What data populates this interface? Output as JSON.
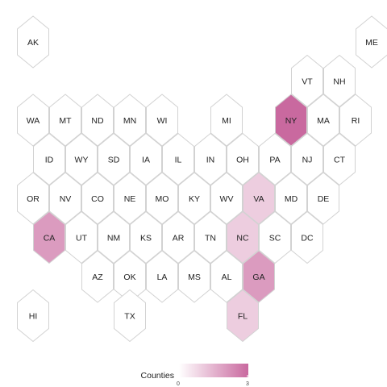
{
  "colors": {
    "low": "#ffffff",
    "high": "#c9699f",
    "hex_stroke": "#d2d2d2"
  },
  "legend": {
    "title": "Counties",
    "min_label": "0",
    "max_label": "3",
    "min": 0,
    "max": 3
  },
  "states": [
    {
      "abbr": "AK",
      "row": 0,
      "col": 0,
      "value": 0
    },
    {
      "abbr": "ME",
      "row": 0,
      "col": 10.5,
      "value": 0
    },
    {
      "abbr": "VT",
      "row": 1,
      "col": 8.5,
      "value": 0
    },
    {
      "abbr": "NH",
      "row": 1,
      "col": 9.5,
      "value": 0
    },
    {
      "abbr": "WA",
      "row": 2,
      "col": 0,
      "value": 0
    },
    {
      "abbr": "MT",
      "row": 2,
      "col": 1,
      "value": 0
    },
    {
      "abbr": "ND",
      "row": 2,
      "col": 2,
      "value": 0
    },
    {
      "abbr": "MN",
      "row": 2,
      "col": 3,
      "value": 0
    },
    {
      "abbr": "WI",
      "row": 2,
      "col": 4,
      "value": 0
    },
    {
      "abbr": "MI",
      "row": 2,
      "col": 6,
      "value": 0
    },
    {
      "abbr": "NY",
      "row": 2,
      "col": 8,
      "value": 3
    },
    {
      "abbr": "MA",
      "row": 2,
      "col": 9,
      "value": 0
    },
    {
      "abbr": "RI",
      "row": 2,
      "col": 10,
      "value": 0
    },
    {
      "abbr": "ID",
      "row": 3,
      "col": 0.5,
      "value": 0
    },
    {
      "abbr": "WY",
      "row": 3,
      "col": 1.5,
      "value": 0
    },
    {
      "abbr": "SD",
      "row": 3,
      "col": 2.5,
      "value": 0
    },
    {
      "abbr": "IA",
      "row": 3,
      "col": 3.5,
      "value": 0
    },
    {
      "abbr": "IL",
      "row": 3,
      "col": 4.5,
      "value": 0
    },
    {
      "abbr": "IN",
      "row": 3,
      "col": 5.5,
      "value": 0
    },
    {
      "abbr": "OH",
      "row": 3,
      "col": 6.5,
      "value": 0
    },
    {
      "abbr": "PA",
      "row": 3,
      "col": 7.5,
      "value": 0
    },
    {
      "abbr": "NJ",
      "row": 3,
      "col": 8.5,
      "value": 0
    },
    {
      "abbr": "CT",
      "row": 3,
      "col": 9.5,
      "value": 0
    },
    {
      "abbr": "OR",
      "row": 4,
      "col": 0,
      "value": 0
    },
    {
      "abbr": "NV",
      "row": 4,
      "col": 1,
      "value": 0
    },
    {
      "abbr": "CO",
      "row": 4,
      "col": 2,
      "value": 0
    },
    {
      "abbr": "NE",
      "row": 4,
      "col": 3,
      "value": 0
    },
    {
      "abbr": "MO",
      "row": 4,
      "col": 4,
      "value": 0
    },
    {
      "abbr": "KY",
      "row": 4,
      "col": 5,
      "value": 0
    },
    {
      "abbr": "WV",
      "row": 4,
      "col": 6,
      "value": 0
    },
    {
      "abbr": "VA",
      "row": 4,
      "col": 7,
      "value": 1
    },
    {
      "abbr": "MD",
      "row": 4,
      "col": 8,
      "value": 0
    },
    {
      "abbr": "DE",
      "row": 4,
      "col": 9,
      "value": 0
    },
    {
      "abbr": "CA",
      "row": 5,
      "col": 0.5,
      "value": 2
    },
    {
      "abbr": "UT",
      "row": 5,
      "col": 1.5,
      "value": 0
    },
    {
      "abbr": "NM",
      "row": 5,
      "col": 2.5,
      "value": 0
    },
    {
      "abbr": "KS",
      "row": 5,
      "col": 3.5,
      "value": 0
    },
    {
      "abbr": "AR",
      "row": 5,
      "col": 4.5,
      "value": 0
    },
    {
      "abbr": "TN",
      "row": 5,
      "col": 5.5,
      "value": 0
    },
    {
      "abbr": "NC",
      "row": 5,
      "col": 6.5,
      "value": 1
    },
    {
      "abbr": "SC",
      "row": 5,
      "col": 7.5,
      "value": 0
    },
    {
      "abbr": "DC",
      "row": 5,
      "col": 8.5,
      "value": 0
    },
    {
      "abbr": "AZ",
      "row": 6,
      "col": 2,
      "value": 0
    },
    {
      "abbr": "OK",
      "row": 6,
      "col": 3,
      "value": 0
    },
    {
      "abbr": "LA",
      "row": 6,
      "col": 4,
      "value": 0
    },
    {
      "abbr": "MS",
      "row": 6,
      "col": 5,
      "value": 0
    },
    {
      "abbr": "AL",
      "row": 6,
      "col": 6,
      "value": 0
    },
    {
      "abbr": "GA",
      "row": 6,
      "col": 7,
      "value": 2
    },
    {
      "abbr": "HI",
      "row": 7,
      "col": 0,
      "value": 0
    },
    {
      "abbr": "TX",
      "row": 7,
      "col": 3,
      "value": 0
    },
    {
      "abbr": "FL",
      "row": 7,
      "col": 6.5,
      "value": 1
    }
  ]
}
